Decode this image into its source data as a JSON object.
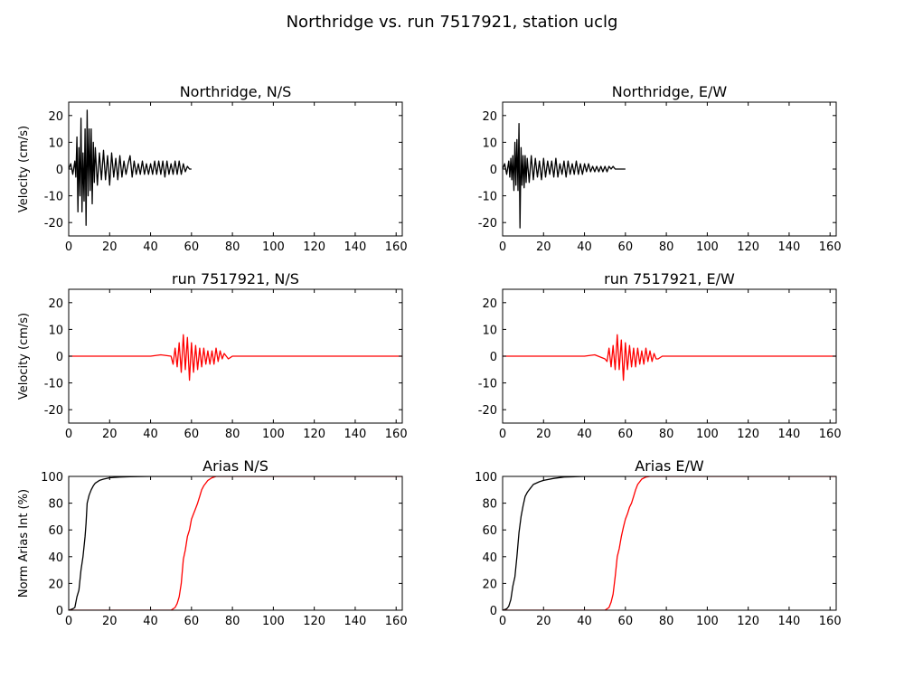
{
  "figure": {
    "title": "Northridge vs. run 7517921, station uclg",
    "colors": {
      "recorded": "#000000",
      "simulated": "#ff0000",
      "axes": "#000000",
      "background": "#ffffff"
    }
  },
  "chart_data": [
    {
      "type": "line",
      "title": "Northridge, N/S",
      "xlabel": "",
      "ylabel": "Velocity (cm/s)",
      "xlim": [
        0,
        163
      ],
      "ylim": [
        -25,
        25
      ],
      "xticks": [
        0,
        20,
        40,
        60,
        80,
        100,
        120,
        140,
        160
      ],
      "yticks": [
        -20,
        -10,
        0,
        10,
        20
      ],
      "series": [
        {
          "color": "#000000",
          "x": [
            0,
            1,
            2,
            3,
            3.5,
            4,
            4.5,
            5,
            5.5,
            6,
            6.5,
            7,
            7.5,
            8,
            8.5,
            9,
            9.5,
            10,
            10.5,
            11,
            11.5,
            12,
            12.5,
            13,
            14,
            15,
            16,
            17,
            18,
            19,
            20,
            21,
            22,
            23,
            24,
            25,
            26,
            27,
            28,
            29,
            30,
            31,
            32,
            33,
            34,
            35,
            36,
            37,
            38,
            39,
            40,
            41,
            42,
            43,
            44,
            45,
            46,
            47,
            48,
            49,
            50,
            51,
            52,
            53,
            54,
            55,
            56,
            57,
            58,
            59,
            60
          ],
          "y": [
            0,
            2,
            -2,
            3,
            -3,
            12,
            -16,
            8,
            -10,
            19,
            -16,
            6,
            -12,
            15,
            -21,
            22,
            -10,
            15,
            -8,
            15,
            -13,
            10,
            -5,
            8,
            -6,
            6,
            -4,
            7,
            -4,
            5,
            -6,
            6,
            -3,
            4,
            -4,
            5,
            -3,
            3,
            -2,
            2,
            5,
            -3,
            3,
            -2,
            2,
            -2,
            3,
            -2,
            2,
            -2,
            2,
            -2,
            3,
            -2,
            3,
            -2,
            3,
            -3,
            3,
            -2,
            2,
            -2,
            3,
            -2,
            3,
            -2,
            2,
            -1,
            1,
            0,
            0
          ]
        }
      ]
    },
    {
      "type": "line",
      "title": "Northridge, E/W",
      "xlabel": "",
      "ylabel": "",
      "xlim": [
        0,
        163
      ],
      "ylim": [
        -25,
        25
      ],
      "xticks": [
        0,
        20,
        40,
        60,
        80,
        100,
        120,
        140,
        160
      ],
      "yticks": [
        -20,
        -10,
        0,
        10,
        20
      ],
      "series": [
        {
          "color": "#000000",
          "x": [
            0,
            1,
            2,
            3,
            3.5,
            4,
            4.5,
            5,
            5.5,
            6,
            6.5,
            7,
            7.5,
            8,
            8.5,
            9,
            9.5,
            10,
            10.5,
            11,
            11.5,
            12,
            13,
            14,
            15,
            16,
            17,
            18,
            19,
            20,
            21,
            22,
            23,
            24,
            25,
            26,
            27,
            28,
            29,
            30,
            31,
            32,
            33,
            34,
            35,
            36,
            37,
            38,
            39,
            40,
            41,
            42,
            43,
            44,
            45,
            46,
            47,
            48,
            49,
            50,
            51,
            52,
            53,
            54,
            55,
            56,
            57,
            58,
            59,
            60
          ],
          "y": [
            0,
            2,
            -2,
            3,
            -3,
            4,
            -4,
            5,
            -8,
            10,
            -6,
            11,
            -8,
            17,
            -22,
            8,
            -6,
            5,
            -7,
            5,
            -5,
            4,
            -5,
            5,
            -4,
            4,
            -3,
            3,
            -4,
            4,
            -3,
            3,
            -2,
            3,
            -3,
            4,
            -3,
            2,
            -2,
            3,
            -3,
            3,
            -2,
            2,
            -2,
            3,
            -2,
            2,
            -2,
            2,
            -1,
            2,
            -1,
            1,
            -1,
            1,
            -1,
            1,
            -1,
            1,
            -1,
            1,
            0,
            1,
            0,
            0,
            0,
            0,
            0,
            0
          ]
        }
      ]
    },
    {
      "type": "line",
      "title": "run 7517921, N/S",
      "xlabel": "",
      "ylabel": "Velocity (cm/s)",
      "xlim": [
        0,
        163
      ],
      "ylim": [
        -25,
        25
      ],
      "xticks": [
        0,
        20,
        40,
        60,
        80,
        100,
        120,
        140,
        160
      ],
      "yticks": [
        -20,
        -10,
        0,
        10,
        20
      ],
      "series": [
        {
          "color": "#ff0000",
          "x": [
            0,
            20,
            40,
            45,
            50,
            51,
            52,
            53,
            54,
            55,
            56,
            57,
            58,
            59,
            60,
            61,
            62,
            63,
            64,
            65,
            66,
            67,
            68,
            69,
            70,
            71,
            72,
            73,
            74,
            75,
            76,
            78,
            80,
            90,
            100,
            120,
            140,
            163
          ],
          "y": [
            0,
            0,
            0,
            0.5,
            0,
            -3,
            3,
            -4,
            5,
            -6,
            8,
            -5,
            7,
            -9,
            5,
            -6,
            4,
            -5,
            3,
            -4,
            3,
            -3,
            2,
            -3,
            2,
            -3,
            3,
            -2,
            2,
            -1,
            1,
            -1,
            0,
            0,
            0,
            0,
            0,
            0
          ]
        }
      ]
    },
    {
      "type": "line",
      "title": "run 7517921, E/W",
      "xlabel": "",
      "ylabel": "",
      "xlim": [
        0,
        163
      ],
      "ylim": [
        -25,
        25
      ],
      "xticks": [
        0,
        20,
        40,
        60,
        80,
        100,
        120,
        140,
        160
      ],
      "yticks": [
        -20,
        -10,
        0,
        10,
        20
      ],
      "series": [
        {
          "color": "#ff0000",
          "x": [
            0,
            20,
            40,
            45,
            50,
            51,
            52,
            53,
            54,
            55,
            56,
            57,
            58,
            59,
            60,
            61,
            62,
            63,
            64,
            65,
            66,
            67,
            68,
            69,
            70,
            71,
            72,
            73,
            74,
            75,
            76,
            78,
            80,
            90,
            100,
            120,
            140,
            163
          ],
          "y": [
            0,
            0,
            0,
            0.5,
            -1,
            -2,
            3,
            -4,
            4,
            -5,
            8,
            -5,
            6,
            -9,
            5,
            -5,
            4,
            -4,
            3,
            -4,
            3,
            -3,
            2,
            -3,
            3,
            -2,
            2,
            -2,
            1,
            -1,
            -1,
            0,
            0,
            0,
            0,
            0,
            0,
            0
          ]
        }
      ]
    },
    {
      "type": "line",
      "title": "Arias N/S",
      "xlabel": "",
      "ylabel": "Norm Arias Int (%)",
      "xlim": [
        0,
        163
      ],
      "ylim": [
        0,
        100
      ],
      "xticks": [
        0,
        20,
        40,
        60,
        80,
        100,
        120,
        140,
        160
      ],
      "yticks": [
        0,
        20,
        40,
        60,
        80,
        100
      ],
      "series": [
        {
          "color": "#000000",
          "x": [
            0,
            2,
            3,
            4,
            5,
            6,
            7,
            8,
            8.5,
            9,
            10,
            11,
            12,
            13,
            15,
            17,
            20,
            25,
            30,
            40,
            50,
            60
          ],
          "y": [
            0,
            1,
            2,
            10,
            15,
            30,
            40,
            55,
            65,
            80,
            86,
            90,
            93,
            95,
            97,
            98,
            99,
            99.5,
            99.8,
            100,
            100,
            100
          ]
        },
        {
          "color": "#ff0000",
          "x": [
            0,
            40,
            50,
            52,
            53,
            54,
            55,
            56,
            57,
            58,
            59,
            60,
            61,
            62,
            63,
            64,
            65,
            66,
            67,
            68,
            70,
            72,
            75,
            80,
            100,
            120,
            140,
            163
          ],
          "y": [
            0,
            0,
            0,
            2,
            5,
            10,
            20,
            38,
            45,
            55,
            60,
            68,
            72,
            76,
            80,
            85,
            90,
            93,
            95,
            97,
            99,
            100,
            100,
            100,
            100,
            100,
            100,
            100
          ]
        }
      ]
    },
    {
      "type": "line",
      "title": "Arias E/W",
      "xlabel": "",
      "ylabel": "",
      "xlim": [
        0,
        163
      ],
      "ylim": [
        0,
        100
      ],
      "xticks": [
        0,
        20,
        40,
        60,
        80,
        100,
        120,
        140,
        160
      ],
      "yticks": [
        0,
        20,
        40,
        60,
        80,
        100
      ],
      "series": [
        {
          "color": "#000000",
          "x": [
            0,
            2,
            3,
            4,
            5,
            6,
            7,
            8,
            9,
            10,
            11,
            12,
            13,
            15,
            18,
            20,
            25,
            30,
            40,
            50,
            60
          ],
          "y": [
            0,
            1,
            3,
            8,
            18,
            25,
            40,
            58,
            70,
            78,
            85,
            88,
            90,
            94,
            96,
            97,
            98.5,
            99.5,
            100,
            100,
            100
          ]
        },
        {
          "color": "#ff0000",
          "x": [
            0,
            40,
            50,
            52,
            53,
            54,
            55,
            56,
            57,
            58,
            59,
            60,
            61,
            62,
            63,
            64,
            65,
            66,
            67,
            68,
            70,
            72,
            75,
            80,
            100,
            120,
            140,
            163
          ],
          "y": [
            0,
            0,
            0,
            2,
            6,
            12,
            25,
            40,
            46,
            55,
            62,
            68,
            72,
            77,
            80,
            85,
            90,
            94,
            96,
            98,
            99.5,
            100,
            100,
            100,
            100,
            100,
            100,
            100
          ]
        }
      ]
    }
  ]
}
